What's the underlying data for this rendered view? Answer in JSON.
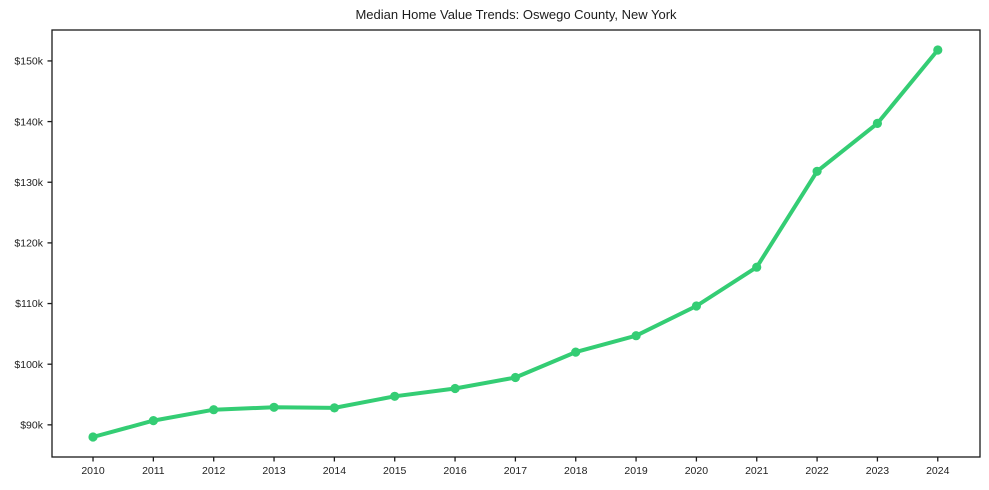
{
  "figure": {
    "background": "#ffffff"
  },
  "chart_data": {
    "type": "line",
    "title": "Median Home Value Trends: Oswego County, New York",
    "x": [
      2010,
      2011,
      2012,
      2013,
      2014,
      2015,
      2016,
      2017,
      2018,
      2019,
      2020,
      2021,
      2022,
      2023,
      2024
    ],
    "xtick_labels": [
      "2010",
      "2011",
      "2012",
      "2013",
      "2014",
      "2015",
      "2016",
      "2017",
      "2018",
      "2019",
      "2020",
      "2021",
      "2022",
      "2023",
      "2024"
    ],
    "series": [
      {
        "name": "Median Home Value",
        "values": [
          88000,
          90700,
          92500,
          92900,
          92800,
          94700,
          96000,
          97800,
          102000,
          104700,
          109600,
          116000,
          131800,
          139700,
          151800
        ]
      }
    ],
    "yticks": {
      "values": [
        90000,
        100000,
        110000,
        120000,
        130000,
        140000,
        150000
      ],
      "labels": [
        "$90k",
        "$100k",
        "$110k",
        "$120k",
        "$130k",
        "$140k",
        "$150k"
      ]
    },
    "xlabel": "",
    "ylabel": "",
    "xlim": [
      2009.32,
      2024.7
    ],
    "ylim": [
      84700,
      155100
    ],
    "grid": false,
    "legend": null,
    "line_color": "#34cd74",
    "marker_color": "#34cd74",
    "frame_color": "#1a1a1a",
    "text_color": "#1f1f1f"
  }
}
